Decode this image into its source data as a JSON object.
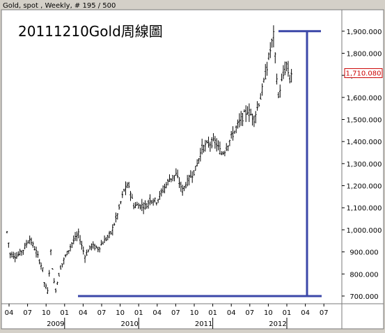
{
  "header": {
    "instrument_label": "Gold, spot , Weekly, # 195 / 500",
    "title": "20111210Gold周線圖"
  },
  "colors": {
    "panel_bg": "#d4d0c8",
    "plot_bg": "#ffffff",
    "bars": "#000000",
    "annotation": "#3b47a8",
    "last_price": "#cc0000"
  },
  "chart_data": {
    "type": "ohlc",
    "title": "20111210Gold周線圖",
    "xlabel": "",
    "ylabel": "",
    "ylim": [
      680,
      1940
    ],
    "yticks": [
      700,
      800,
      900,
      1000,
      1100,
      1200,
      1300,
      1400,
      1500,
      1600,
      1700,
      1800,
      1900
    ],
    "ytick_labels": [
      "700.000",
      "800.000",
      "900.000",
      "1,000.000",
      "1,100.000",
      "1,200.000",
      "1,300.000",
      "1,400.000",
      "1,500.000",
      "1,600.000",
      "1,700.000",
      "1,800.000",
      "1,900.000"
    ],
    "last_price": 1710.08,
    "last_price_label": "1,710.080",
    "x_month_ticks": [
      "04",
      "07",
      "10",
      "01",
      "04",
      "07",
      "10",
      "01",
      "04",
      "07",
      "10",
      "01",
      "04",
      "07",
      "10",
      "01",
      "04",
      "07"
    ],
    "x_year_labels": [
      {
        "label": "2009",
        "at_tick": 3
      },
      {
        "label": "2010",
        "at_tick": 7
      },
      {
        "label": "2011",
        "at_tick": 11
      },
      {
        "label": "2012",
        "at_tick": 15
      }
    ],
    "grid": false,
    "weekly_close_anchors": [
      [
        0,
        990
      ],
      [
        2,
        890
      ],
      [
        6,
        880
      ],
      [
        10,
        910
      ],
      [
        14,
        960
      ],
      [
        18,
        900
      ],
      [
        22,
        820
      ],
      [
        23,
        760
      ],
      [
        25,
        720
      ],
      [
        27,
        900
      ],
      [
        29,
        760
      ],
      [
        30,
        730
      ],
      [
        33,
        830
      ],
      [
        36,
        880
      ],
      [
        40,
        940
      ],
      [
        44,
        980
      ],
      [
        48,
        880
      ],
      [
        52,
        930
      ],
      [
        56,
        915
      ],
      [
        60,
        950
      ],
      [
        64,
        985
      ],
      [
        68,
        1070
      ],
      [
        72,
        1180
      ],
      [
        75,
        1200
      ],
      [
        78,
        1110
      ],
      [
        82,
        1110
      ],
      [
        86,
        1110
      ],
      [
        88,
        1140
      ],
      [
        92,
        1130
      ],
      [
        96,
        1180
      ],
      [
        100,
        1230
      ],
      [
        104,
        1250
      ],
      [
        108,
        1180
      ],
      [
        112,
        1230
      ],
      [
        116,
        1275
      ],
      [
        120,
        1370
      ],
      [
        124,
        1390
      ],
      [
        128,
        1400
      ],
      [
        132,
        1345
      ],
      [
        134,
        1360
      ],
      [
        138,
        1420
      ],
      [
        142,
        1475
      ],
      [
        144,
        1500
      ],
      [
        148,
        1540
      ],
      [
        152,
        1505
      ],
      [
        156,
        1600
      ],
      [
        159,
        1700
      ],
      [
        161,
        1780
      ],
      [
        163,
        1850
      ],
      [
        164,
        1880
      ],
      [
        165,
        1780
      ],
      [
        167,
        1600
      ],
      [
        168,
        1640
      ],
      [
        170,
        1700
      ],
      [
        172,
        1750
      ],
      [
        174,
        1680
      ],
      [
        175,
        1710
      ]
    ],
    "annotations": {
      "target_high": 1900,
      "base_low": 700,
      "vertical_line_x_label": "04"
    }
  }
}
